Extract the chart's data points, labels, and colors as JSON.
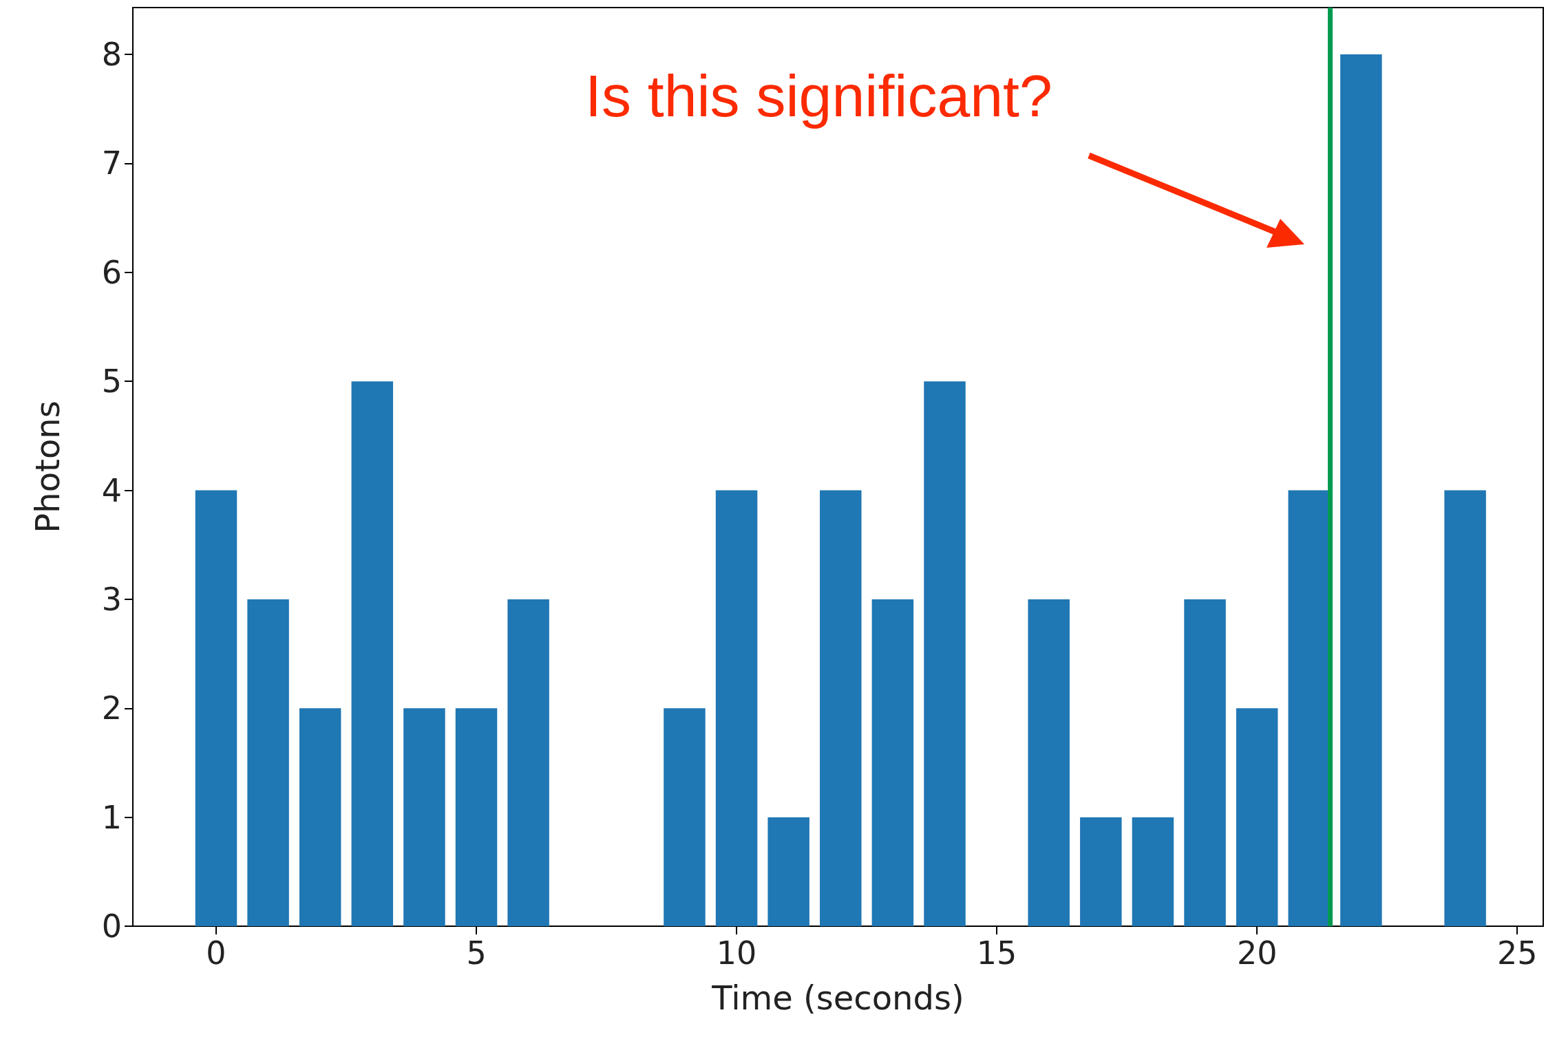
{
  "chart_data": {
    "type": "bar",
    "xlabel": "Time (seconds)",
    "ylabel": "Photons",
    "x": [
      0,
      1,
      2,
      3,
      4,
      5,
      6,
      7,
      8,
      9,
      10,
      11,
      12,
      13,
      14,
      15,
      16,
      17,
      18,
      19,
      20,
      21,
      22,
      23,
      24
    ],
    "values": [
      4,
      3,
      2,
      5,
      2,
      2,
      3,
      0,
      0,
      2,
      4,
      1,
      4,
      3,
      5,
      0,
      3,
      1,
      1,
      3,
      2,
      4,
      8,
      0,
      4
    ],
    "color": "#1f77b4",
    "xlim": [
      -1.6,
      25.5
    ],
    "xticks": [
      0,
      5,
      10,
      15,
      20,
      25
    ],
    "ylim": [
      0,
      8.43
    ],
    "yticks": [
      0,
      1,
      2,
      3,
      4,
      5,
      6,
      7,
      8
    ],
    "grid": false,
    "ref_lines": [
      {
        "axis": "x",
        "value": 21.4,
        "color": "#009a50"
      }
    ],
    "annotations": [
      "Is this significant?"
    ]
  }
}
